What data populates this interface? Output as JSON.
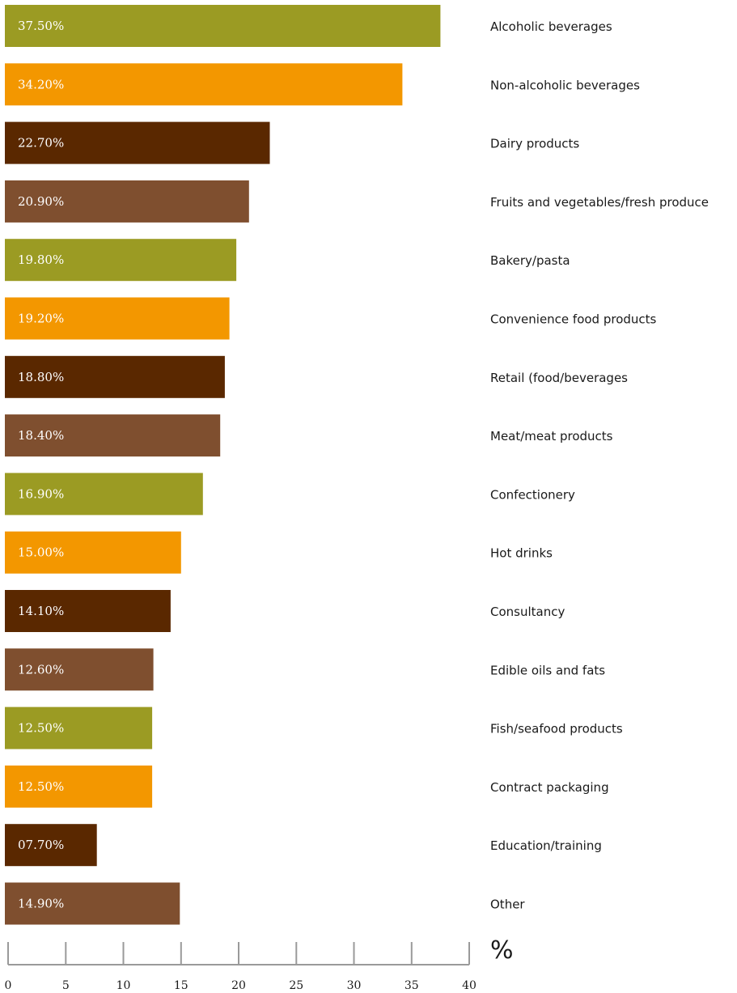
{
  "chart_data": {
    "type": "bar",
    "orientation": "horizontal",
    "categories": [
      "Alcoholic beverages",
      "Non-alcoholic beverages",
      "Dairy products",
      "Fruits and vegetables/fresh produce",
      "Bakery/pasta",
      "Convenience food products",
      "Retail (food/beverages",
      "Meat/meat products",
      "Confectionery",
      "Hot drinks",
      "Consultancy",
      "Edible oils and fats",
      "Fish/seafood products",
      "Contract packaging",
      "Education/training",
      "Other"
    ],
    "values": [
      37.5,
      34.2,
      22.7,
      20.9,
      19.8,
      19.2,
      18.8,
      18.4,
      16.9,
      15.0,
      14.1,
      12.6,
      12.5,
      12.5,
      7.7,
      14.9
    ],
    "value_labels": [
      "37.50%",
      "34.20%",
      "22.70%",
      "20.90%",
      "19.80%",
      "19.20%",
      "18.80%",
      "18.40%",
      "16.90%",
      "15.00%",
      "14.10%",
      "12.60%",
      "12.50%",
      "12.50%",
      "07.70%",
      "14.90%"
    ],
    "bar_colors": [
      "#9b9b23",
      "#f39700",
      "#5a2800",
      "#7f4f2f",
      "#9b9b23",
      "#f39700",
      "#5a2800",
      "#7f4f2f",
      "#9b9b23",
      "#f39700",
      "#5a2800",
      "#7f4f2f",
      "#9b9b23",
      "#f39700",
      "#5a2800",
      "#7f4f2f"
    ],
    "xlim": [
      0,
      40
    ],
    "x_ticks": [
      0,
      5,
      10,
      15,
      20,
      25,
      30,
      35,
      40
    ],
    "unit_label": "%",
    "title": "",
    "xlabel": "",
    "ylabel": "",
    "grid": false,
    "legend": "none"
  }
}
